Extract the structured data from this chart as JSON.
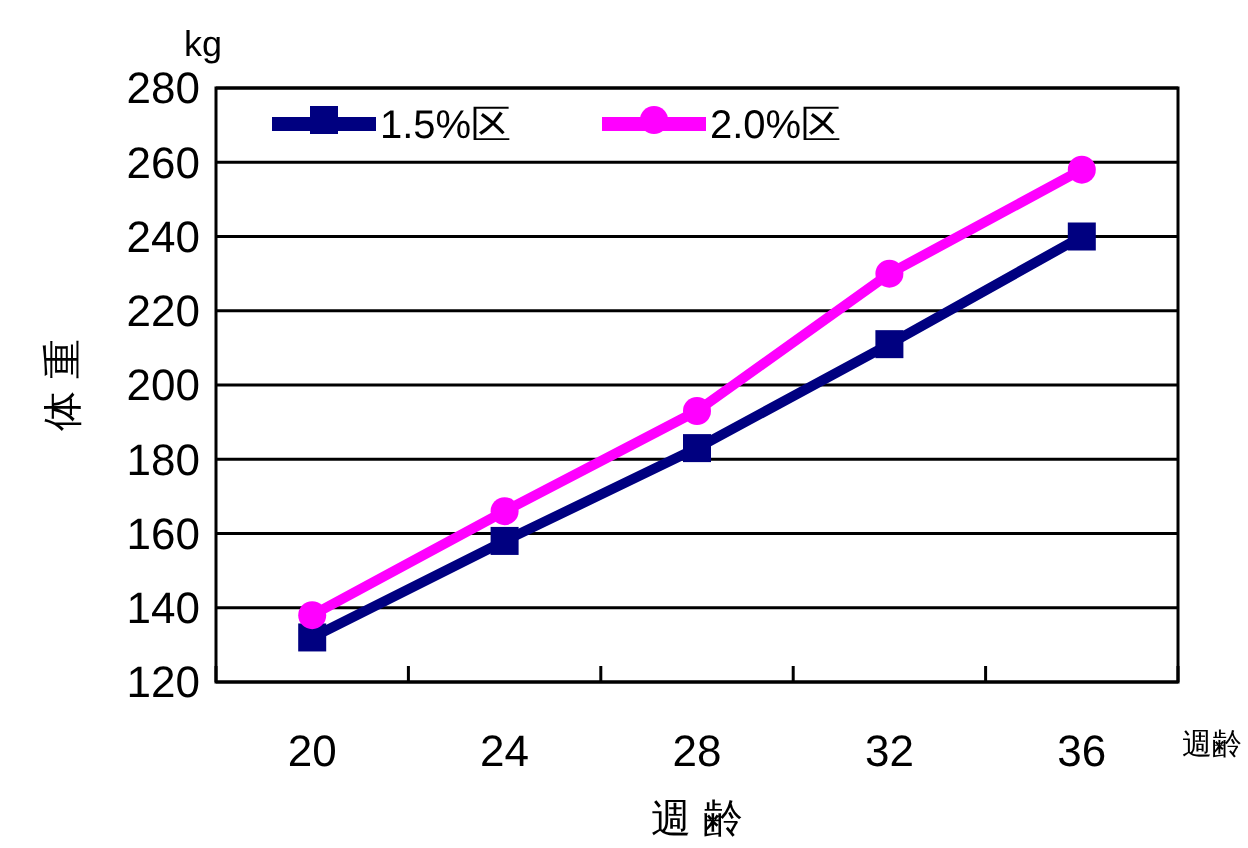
{
  "chart_data": {
    "type": "line",
    "xlabel": "週 齢",
    "ylabel": "体 重",
    "annotations": [
      "kg",
      "週齢"
    ],
    "categories": [
      "20",
      "24",
      "28",
      "32",
      "36"
    ],
    "series": [
      {
        "name": "1.5%区",
        "color": "#000080",
        "values": [
          132,
          158,
          183,
          211,
          240
        ],
        "marker": "square"
      },
      {
        "name": "2.0%区",
        "color": "#ff00ff",
        "values": [
          138,
          166,
          193,
          230,
          258
        ],
        "marker": "circle"
      }
    ],
    "ylim": [
      120,
      280
    ],
    "yticks": [
      120,
      140,
      160,
      180,
      200,
      220,
      240,
      260,
      280
    ],
    "grid": "y",
    "legend": "top left",
    "line_style": "solid"
  }
}
